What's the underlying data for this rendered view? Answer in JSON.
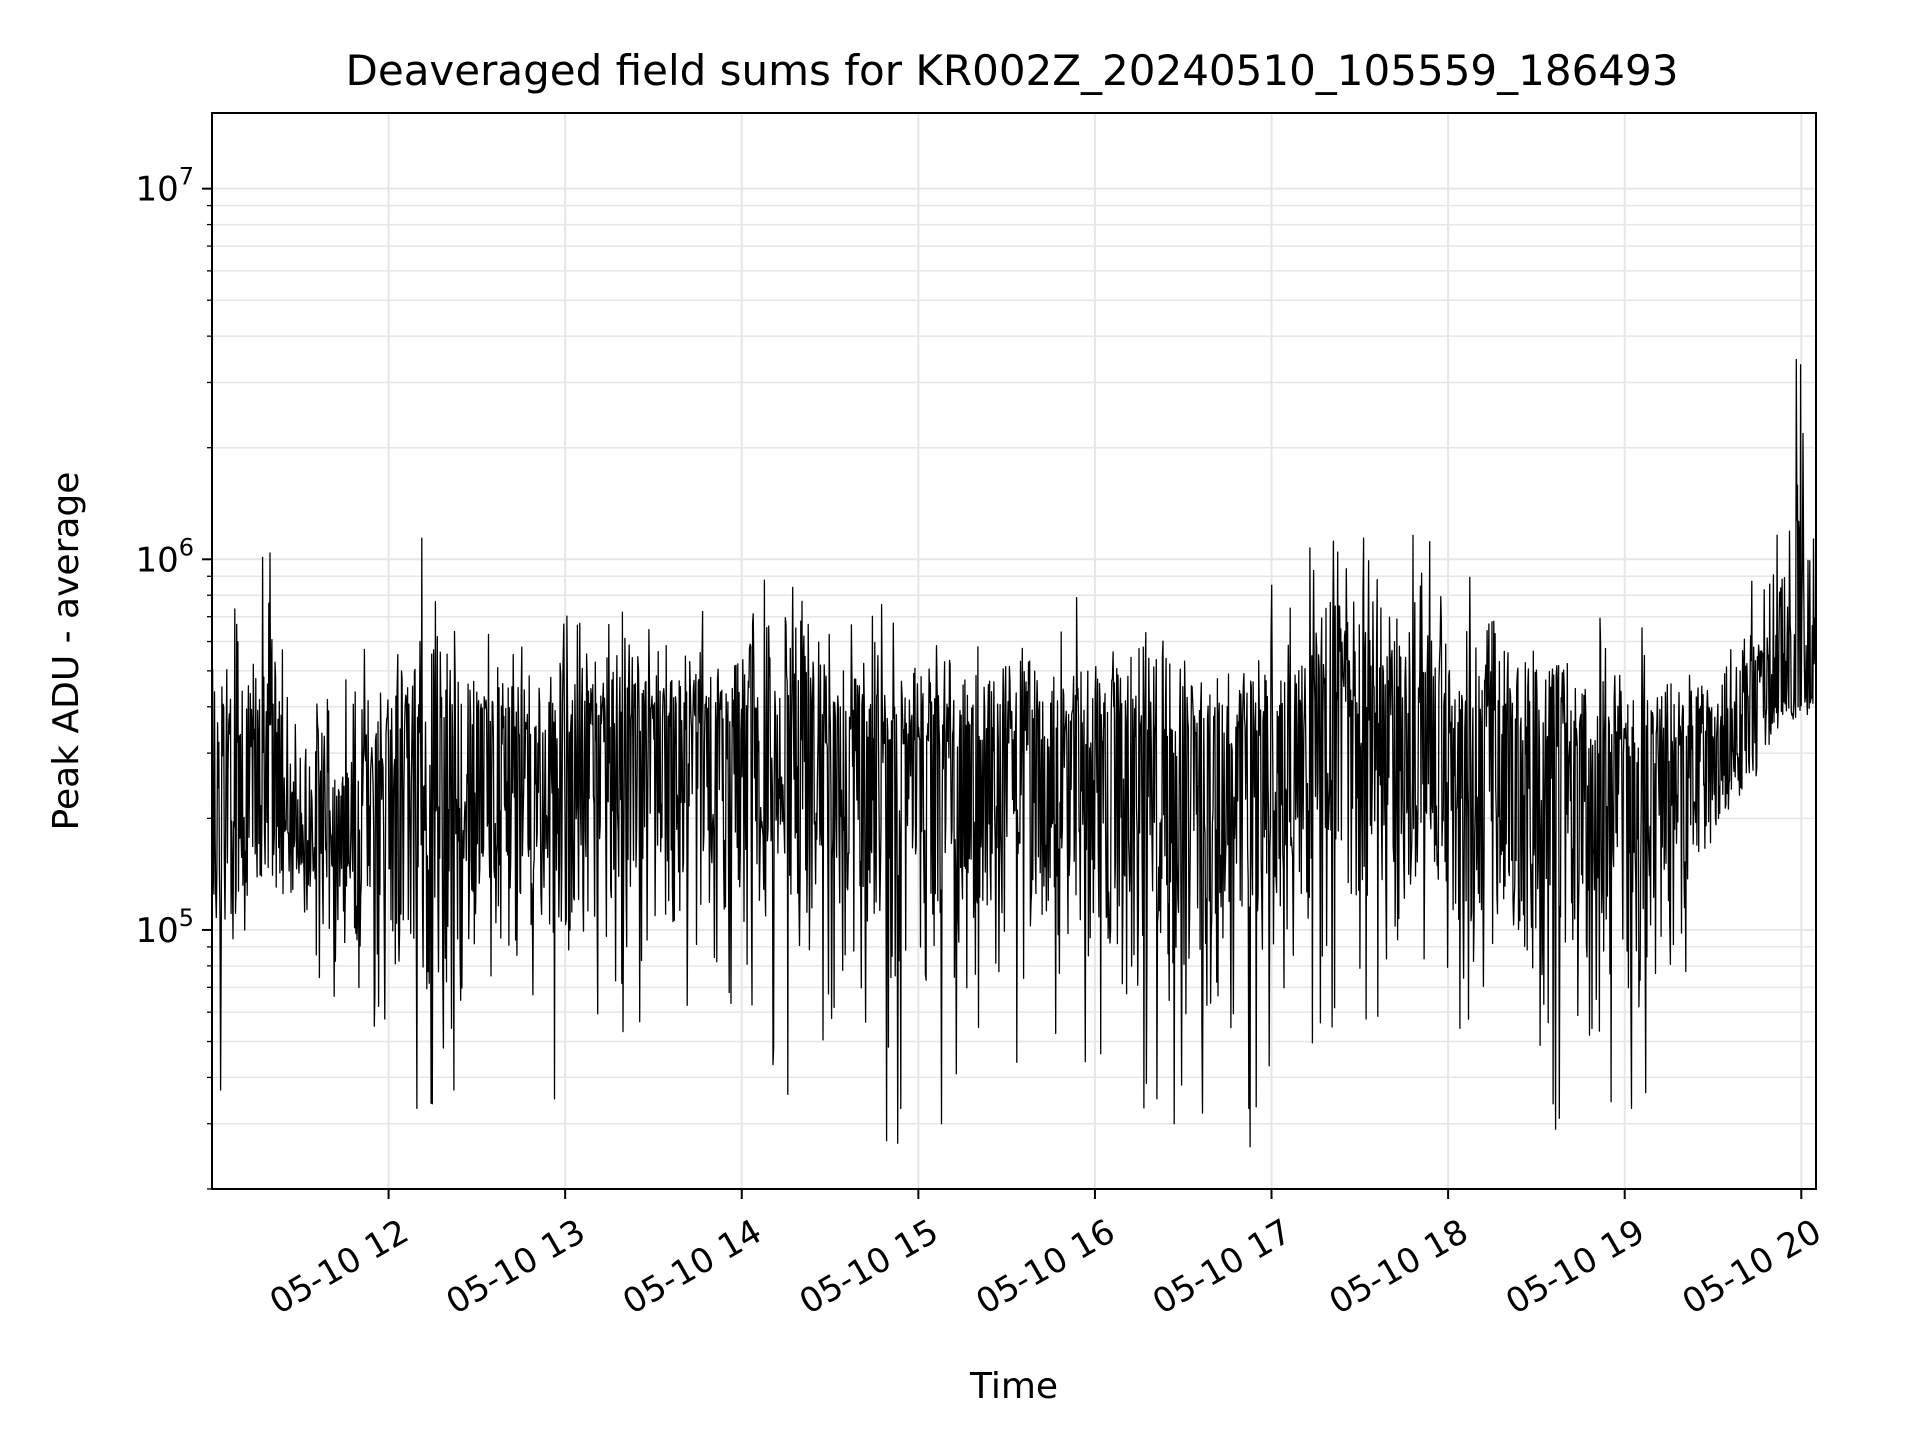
{
  "chart_data": {
    "type": "line",
    "title": "Deaveraged field sums for KR002Z_20240510_105559_186493",
    "xlabel": "Time",
    "ylabel": "Peak ADU - average",
    "yscale": "log",
    "xlim": [
      "05-10 11:00",
      "05-10 20:05"
    ],
    "ylim": [
      20000,
      16000000
    ],
    "grid": true,
    "line_color": "#000000",
    "grid_color": "#e6e6e6",
    "x_ticks": [
      "05-10 12",
      "05-10 13",
      "05-10 14",
      "05-10 15",
      "05-10 16",
      "05-10 17",
      "05-10 18",
      "05-10 19",
      "05-10 20"
    ],
    "y_ticks": [
      {
        "base": "10",
        "exp": "5",
        "value": 100000
      },
      {
        "base": "10",
        "exp": "6",
        "value": 1000000
      },
      {
        "base": "10",
        "exp": "7",
        "value": 10000000
      }
    ],
    "series": [
      {
        "x_hours": [
          11.0,
          11.25,
          11.5,
          11.75,
          12.0,
          12.25,
          12.5,
          12.75,
          13.0,
          13.25,
          13.5,
          13.75,
          14.0,
          14.25,
          14.5,
          14.75,
          15.0,
          15.25,
          15.5,
          15.75,
          16.0,
          16.25,
          16.5,
          16.75,
          17.0,
          17.25,
          17.5,
          17.75,
          18.0,
          18.25,
          18.5,
          18.75,
          19.0,
          19.25,
          19.5,
          19.75,
          20.0,
          20.08
        ],
        "median": [
          200000,
          240000,
          200000,
          210000,
          250000,
          290000,
          300000,
          280000,
          300000,
          290000,
          310000,
          300000,
          300000,
          320000,
          300000,
          290000,
          280000,
          270000,
          280000,
          290000,
          280000,
          270000,
          280000,
          270000,
          300000,
          330000,
          340000,
          330000,
          300000,
          300000,
          280000,
          270000,
          260000,
          270000,
          280000,
          400000,
          450000,
          480000
        ],
        "high": [
          650000,
          1040000,
          550000,
          500000,
          600000,
          1140000,
          650000,
          700000,
          700000,
          700000,
          750000,
          650000,
          750000,
          870000,
          750000,
          760000,
          650000,
          650000,
          700000,
          680000,
          750000,
          700000,
          700000,
          680000,
          800000,
          1120000,
          1140000,
          1160000,
          1030000,
          900000,
          800000,
          700000,
          650000,
          600000,
          600000,
          900000,
          3460000,
          880000
        ],
        "low": [
          37000,
          90000,
          85000,
          55000,
          33000,
          37000,
          70000,
          35000,
          60000,
          47000,
          52000,
          55000,
          60000,
          36000,
          56000,
          27000,
          30000,
          35000,
          40000,
          43000,
          45000,
          35000,
          32000,
          26000,
          44000,
          50000,
          60000,
          58000,
          45000,
          47000,
          29000,
          40000,
          33000,
          40000,
          110000,
          240000,
          350000,
          330000
        ],
        "spikes": [
          {
            "x": 11.05,
            "y": 37000
          },
          {
            "x": 11.33,
            "y": 1040000
          },
          {
            "x": 11.92,
            "y": 55000
          },
          {
            "x": 12.16,
            "y": 33000
          },
          {
            "x": 12.19,
            "y": 1140000
          },
          {
            "x": 12.37,
            "y": 37000
          },
          {
            "x": 12.94,
            "y": 35000
          },
          {
            "x": 14.26,
            "y": 36000
          },
          {
            "x": 14.82,
            "y": 27000
          },
          {
            "x": 15.13,
            "y": 30000
          },
          {
            "x": 16.35,
            "y": 35000
          },
          {
            "x": 16.45,
            "y": 30000
          },
          {
            "x": 16.88,
            "y": 26000
          },
          {
            "x": 16.87,
            "y": 33000
          },
          {
            "x": 17.35,
            "y": 1120000
          },
          {
            "x": 17.52,
            "y": 1140000
          },
          {
            "x": 17.8,
            "y": 1160000
          },
          {
            "x": 18.61,
            "y": 29000
          },
          {
            "x": 18.8,
            "y": 52000
          },
          {
            "x": 19.04,
            "y": 33000
          },
          {
            "x": 19.97,
            "y": 3460000
          }
        ]
      }
    ]
  }
}
